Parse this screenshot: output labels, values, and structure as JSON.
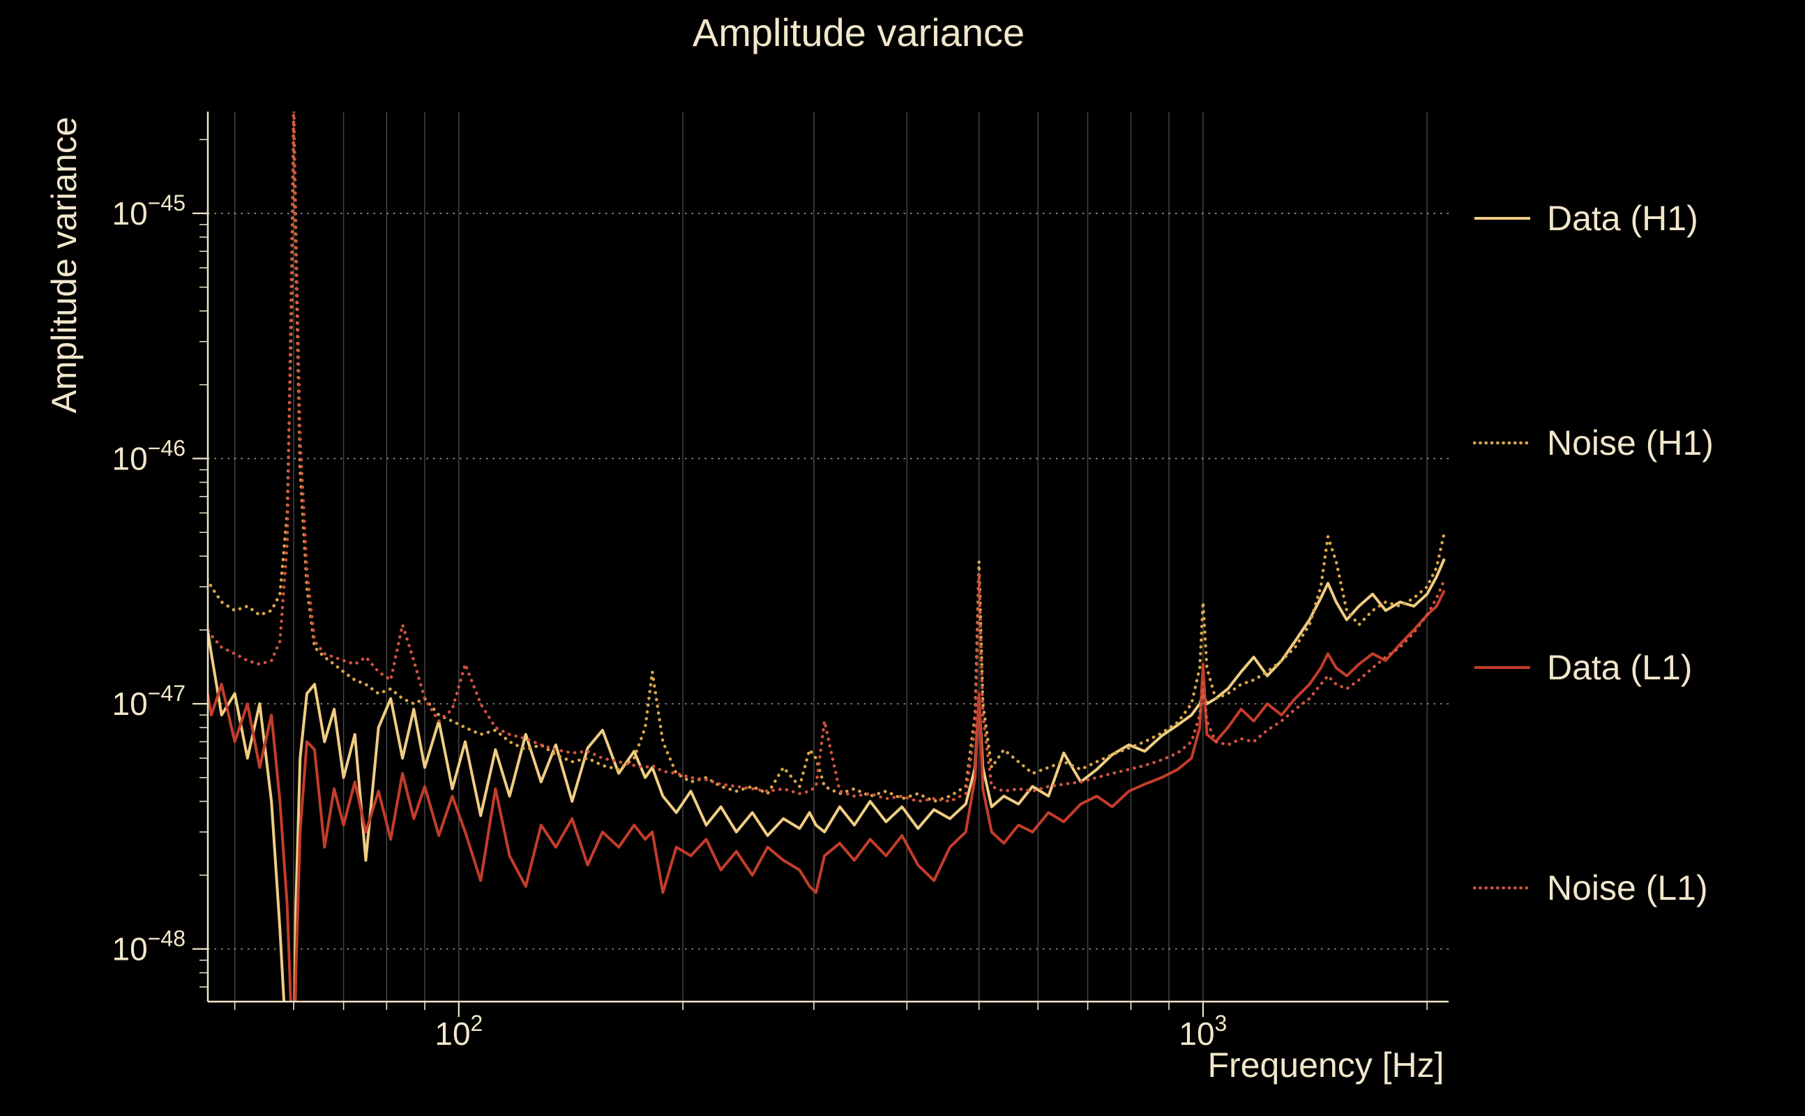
{
  "colors": {
    "background": "#000000",
    "text": "#f2e7cb",
    "axis": "#f2e7cb",
    "grid_solid": "#8f8f8f",
    "grid_dotted": "#cfcfcf"
  },
  "chart_data": {
    "type": "line",
    "title": "Amplitude variance",
    "xlabel": "Frequency [Hz]",
    "ylabel": "Amplitude variance",
    "xscale": "log",
    "yscale": "log",
    "xlim": [
      46,
      2138
    ],
    "ylim": [
      6.1e-49,
      2.6e-45
    ],
    "grid": true,
    "legend_position": "right-outside",
    "x_ticks": [
      {
        "value": 100,
        "base": "10",
        "sup": "2"
      },
      {
        "value": 1000,
        "base": "10",
        "sup": "3"
      }
    ],
    "y_ticks": [
      {
        "value": 1e-45,
        "base": "10",
        "sup": "−45"
      },
      {
        "value": 1e-46,
        "base": "10",
        "sup": "−46"
      },
      {
        "value": 1e-47,
        "base": "10",
        "sup": "−47"
      },
      {
        "value": 1e-48,
        "base": "10",
        "sup": "−48"
      }
    ],
    "x_gridlines": [
      50,
      60,
      70,
      80,
      90,
      100,
      200,
      300,
      400,
      500,
      600,
      700,
      800,
      900,
      1000,
      2000
    ],
    "y_gridlines": [
      1e-48,
      1e-47,
      1e-46,
      1e-45
    ],
    "value_scale": 1e-48,
    "frequencies_hz": [
      45,
      46.5,
      48,
      50,
      52,
      54,
      56,
      57.5,
      58.8,
      59.6,
      60,
      60.4,
      61.2,
      62.5,
      64,
      66,
      68,
      70,
      72.5,
      75,
      78,
      81,
      84,
      87,
      90,
      94,
      98,
      102,
      107,
      112,
      117,
      123,
      129,
      135,
      142,
      149,
      156,
      164,
      172,
      178,
      182,
      188,
      196,
      205,
      215,
      225,
      236,
      248,
      260,
      273,
      287,
      296,
      302,
      310,
      325,
      340,
      357,
      375,
      394,
      414,
      435,
      457,
      480,
      494,
      500,
      506,
      520,
      540,
      565,
      590,
      620,
      650,
      685,
      720,
      755,
      795,
      835,
      880,
      925,
      965,
      990,
      1000,
      1012,
      1040,
      1080,
      1125,
      1170,
      1220,
      1275,
      1330,
      1390,
      1440,
      1472,
      1510,
      1560,
      1620,
      1690,
      1760,
      1840,
      1920,
      2000,
      2060,
      2110
    ],
    "series": [
      {
        "name": "Data (H1)",
        "color": "#efcd82",
        "style": "solid",
        "values_scaled": [
          30,
          16,
          9,
          11,
          6,
          10,
          4,
          1.2,
          0.35,
          0.2,
          0.3,
          1.5,
          6,
          11,
          12,
          7,
          9.5,
          5,
          7.5,
          2.3,
          8,
          10.5,
          6,
          9.5,
          5.5,
          8.5,
          4.5,
          7,
          3.5,
          6.5,
          4.2,
          7.5,
          4.8,
          6.8,
          4.0,
          6.6,
          7.8,
          5.2,
          6.4,
          5.0,
          5.5,
          4.2,
          3.6,
          4.4,
          3.2,
          3.8,
          3.0,
          3.6,
          2.9,
          3.4,
          3.1,
          3.6,
          3.2,
          3.0,
          3.8,
          3.2,
          4.0,
          3.3,
          3.8,
          3.1,
          3.7,
          3.4,
          3.9,
          5.5,
          10.5,
          5.5,
          3.8,
          4.2,
          3.9,
          4.6,
          4.2,
          6.3,
          4.8,
          5.4,
          6.2,
          6.8,
          6.4,
          7.4,
          8.2,
          9.0,
          10,
          11,
          10,
          10.5,
          11.5,
          13.5,
          15.5,
          13,
          15,
          18,
          22,
          27,
          31,
          26,
          22,
          25,
          28,
          24,
          26,
          25,
          28,
          33,
          39
        ]
      },
      {
        "name": "Noise (H1)",
        "color": "#d9a648",
        "style": "dotted",
        "values_scaled": [
          36,
          30,
          26,
          24,
          25,
          23,
          24,
          28,
          60,
          400,
          2400,
          700,
          90,
          30,
          17,
          15.5,
          14.5,
          13.5,
          12.5,
          12,
          11,
          11.5,
          10.5,
          10,
          10.5,
          9,
          8.5,
          8,
          7.5,
          7.8,
          7,
          6.5,
          6.8,
          6.2,
          5.8,
          6.0,
          5.6,
          5.4,
          6.0,
          8.0,
          13.5,
          7.0,
          5.2,
          4.8,
          5.0,
          4.6,
          4.4,
          4.6,
          4.3,
          5.5,
          4.6,
          6.5,
          6.0,
          4.6,
          4.3,
          4.5,
          4.2,
          4.4,
          4.1,
          4.3,
          4.0,
          4.2,
          4.6,
          9.0,
          38,
          10,
          5.5,
          6.5,
          5.8,
          5.2,
          5.5,
          5.8,
          5.4,
          5.8,
          6.2,
          6.6,
          7.0,
          7.6,
          8.4,
          10,
          14,
          26,
          14,
          10.5,
          11,
          12,
          12.5,
          13.5,
          15,
          17,
          21,
          30,
          48,
          38,
          24,
          21,
          24,
          26,
          25,
          27,
          30,
          36,
          50
        ]
      },
      {
        "name": "Data (L1)",
        "color": "#c33d2b",
        "style": "solid",
        "values_scaled": [
          16,
          9,
          12,
          7,
          10,
          5.5,
          9,
          4,
          1.5,
          0.5,
          0.25,
          0.8,
          3,
          7,
          6.5,
          2.6,
          4.5,
          3.2,
          4.8,
          3.0,
          4.4,
          2.8,
          5.2,
          3.4,
          4.6,
          2.9,
          4.2,
          3.0,
          1.9,
          4.5,
          2.4,
          1.8,
          3.2,
          2.6,
          3.4,
          2.2,
          3.0,
          2.6,
          3.2,
          2.8,
          3.0,
          1.7,
          2.6,
          2.4,
          2.8,
          2.1,
          2.5,
          2.0,
          2.6,
          2.3,
          2.1,
          1.8,
          1.7,
          2.4,
          2.7,
          2.3,
          2.8,
          2.4,
          2.9,
          2.2,
          1.9,
          2.6,
          3.0,
          5.0,
          11,
          4.5,
          3.0,
          2.7,
          3.2,
          3.0,
          3.6,
          3.3,
          3.9,
          4.2,
          3.8,
          4.4,
          4.7,
          5.0,
          5.4,
          6.0,
          8.0,
          14.5,
          7.5,
          7.0,
          8.0,
          9.5,
          8.5,
          10,
          9.0,
          10.5,
          12,
          14,
          16,
          14,
          13,
          14.5,
          16,
          15,
          17.5,
          20,
          23,
          25,
          29
        ]
      },
      {
        "name": "Noise (L1)",
        "color": "#cf5340",
        "style": "dotted",
        "values_scaled": [
          22,
          19,
          17,
          16,
          15,
          14.5,
          15,
          18,
          45,
          600,
          3000,
          900,
          120,
          35,
          18,
          16,
          15.5,
          15,
          14.5,
          15.5,
          13.5,
          12.5,
          21,
          15,
          10.5,
          8.5,
          9.5,
          14.5,
          10,
          8,
          7.5,
          7.2,
          6.8,
          6.5,
          6.3,
          6.4,
          6.0,
          5.8,
          5.6,
          5.5,
          5.6,
          5.3,
          5.2,
          5.0,
          4.9,
          4.7,
          4.6,
          4.5,
          4.4,
          4.5,
          4.3,
          4.4,
          4.6,
          8.5,
          4.4,
          4.2,
          4.3,
          4.1,
          4.2,
          4.0,
          4.1,
          4.0,
          4.3,
          8.0,
          34,
          9.0,
          4.6,
          4.4,
          4.5,
          4.4,
          4.6,
          4.7,
          4.8,
          5.0,
          5.2,
          5.4,
          5.6,
          5.9,
          6.3,
          7.0,
          9.0,
          12.5,
          8.5,
          7.0,
          6.8,
          7.2,
          7.0,
          7.8,
          8.5,
          9.5,
          10.5,
          12,
          13,
          12,
          11.5,
          12.5,
          14,
          15.5,
          17,
          19.5,
          23,
          27,
          32
        ]
      }
    ]
  }
}
